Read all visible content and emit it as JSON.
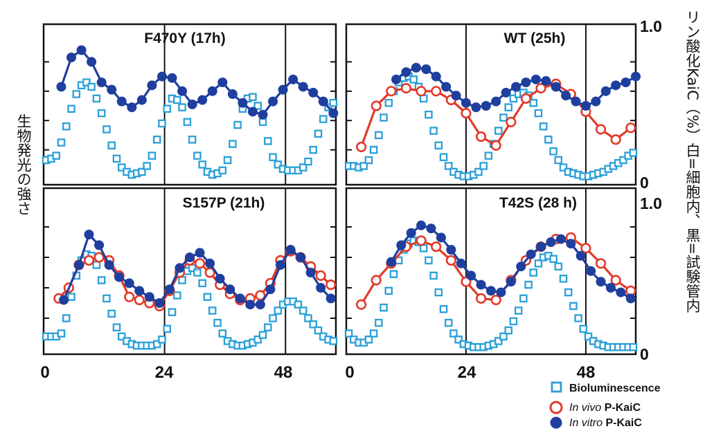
{
  "chart_data": {
    "type": "line",
    "left_axis_label": "生物発光の強さ",
    "right_axis_label": "リン酸化KaiC（%）白=細胞内、黒=試験管内",
    "x_ticks": [
      "0",
      "24",
      "48"
    ],
    "right_ticks": [
      "1.0",
      "0"
    ],
    "legend": {
      "placement": "bottom-right",
      "items": [
        {
          "key": "bio",
          "plain": "Bioluminescence",
          "italic": "",
          "suffix": ""
        },
        {
          "key": "invivo",
          "plain": "",
          "italic": "In vivo",
          "suffix": " P-KaiC"
        },
        {
          "key": "invitro",
          "plain": "",
          "italic": "In vitro",
          "suffix": " P-KaiC"
        }
      ]
    },
    "colors": {
      "bio": "#2a9fd8",
      "invivo": "#e23a2a",
      "invitro": "#1f3f9e"
    },
    "xlim": [
      0,
      58
    ],
    "ylim": [
      0,
      1.0
    ],
    "panels": [
      {
        "title": "F470Y (17h)",
        "period_lines": [
          24,
          48
        ],
        "series": {
          "bio": {
            "x": [
              0.5,
              1.5,
              2.5,
              3.5,
              4.5,
              5.5,
              6.5,
              7.5,
              8.5,
              9.5,
              10.5,
              11.5,
              12.5,
              13.5,
              14.5,
              15.5,
              16.5,
              17.5,
              18.5,
              19.5,
              20.5,
              21.5,
              22.5,
              23.5,
              24.5,
              25.5,
              26.5,
              27.5,
              28.5,
              29.5,
              30.5,
              31.5,
              32.5,
              33.5,
              34.5,
              35.5,
              36.5,
              37.5,
              38.5,
              39.5,
              40.5,
              41.5,
              42.5,
              43.5,
              44.5,
              45.5,
              46.5,
              47.5,
              48.5,
              49.5,
              50.5,
              51.5,
              52.5,
              53.5,
              54.5,
              55.5,
              56.5,
              57.5
            ],
            "y": [
              0.13,
              0.14,
              0.16,
              0.25,
              0.36,
              0.48,
              0.58,
              0.64,
              0.66,
              0.63,
              0.55,
              0.45,
              0.34,
              0.23,
              0.14,
              0.08,
              0.05,
              0.03,
              0.04,
              0.05,
              0.09,
              0.16,
              0.27,
              0.38,
              0.48,
              0.55,
              0.54,
              0.49,
              0.39,
              0.27,
              0.16,
              0.1,
              0.05,
              0.03,
              0.04,
              0.06,
              0.13,
              0.24,
              0.37,
              0.48,
              0.55,
              0.56,
              0.5,
              0.39,
              0.26,
              0.15,
              0.1,
              0.07,
              0.06,
              0.06,
              0.06,
              0.08,
              0.12,
              0.2,
              0.31,
              0.41,
              0.49,
              0.52
            ]
          },
          "invitro": {
            "x": [
              3.5,
              5.5,
              7.5,
              9.5,
              11.5,
              13.5,
              15.5,
              17.5,
              19.5,
              21.5,
              23.5,
              25.5,
              27.5,
              29.5,
              31.5,
              33.5,
              35.5,
              37.5,
              39.5,
              41.5,
              43.5,
              45.5,
              47.5,
              49.5,
              51.5,
              53.5,
              55.5,
              57.5
            ],
            "y": [
              0.63,
              0.83,
              0.88,
              0.8,
              0.66,
              0.61,
              0.53,
              0.49,
              0.54,
              0.64,
              0.7,
              0.69,
              0.6,
              0.51,
              0.54,
              0.6,
              0.66,
              0.58,
              0.52,
              0.46,
              0.44,
              0.53,
              0.61,
              0.68,
              0.63,
              0.59,
              0.53,
              0.45
            ]
          },
          "invivo": {
            "x": [],
            "y": []
          }
        }
      },
      {
        "title": "WT (25h)",
        "period_lines": [
          24,
          48
        ],
        "series": {
          "bio": {
            "x": [
              0.5,
              1.5,
              2.5,
              3.5,
              4.5,
              5.5,
              6.5,
              7.5,
              8.5,
              9.5,
              10.5,
              11.5,
              12.5,
              13.5,
              14.5,
              15.5,
              16.5,
              17.5,
              18.5,
              19.5,
              20.5,
              21.5,
              22.5,
              23.5,
              24.5,
              25.5,
              26.5,
              27.5,
              28.5,
              29.5,
              30.5,
              31.5,
              32.5,
              33.5,
              34.5,
              35.5,
              36.5,
              37.5,
              38.5,
              39.5,
              40.5,
              41.5,
              42.5,
              43.5,
              44.5,
              45.5,
              46.5,
              47.5,
              48.5,
              49.5,
              50.5,
              51.5,
              52.5,
              53.5,
              54.5,
              55.5,
              56.5,
              57.5
            ],
            "y": [
              0.09,
              0.09,
              0.08,
              0.09,
              0.13,
              0.2,
              0.3,
              0.42,
              0.52,
              0.6,
              0.66,
              0.69,
              0.7,
              0.68,
              0.63,
              0.55,
              0.44,
              0.33,
              0.23,
              0.15,
              0.09,
              0.05,
              0.03,
              0.02,
              0.02,
              0.03,
              0.05,
              0.09,
              0.16,
              0.24,
              0.33,
              0.42,
              0.49,
              0.55,
              0.58,
              0.59,
              0.57,
              0.52,
              0.45,
              0.36,
              0.27,
              0.19,
              0.13,
              0.08,
              0.05,
              0.04,
              0.03,
              0.02,
              0.02,
              0.03,
              0.04,
              0.05,
              0.07,
              0.09,
              0.11,
              0.13,
              0.16,
              0.18
            ]
          },
          "invivo": {
            "x": [
              3,
              6,
              9,
              12,
              15,
              18,
              21,
              24,
              27,
              30,
              33,
              36,
              39,
              42,
              45,
              48,
              51,
              54,
              57
            ],
            "y": [
              0.22,
              0.5,
              0.6,
              0.62,
              0.6,
              0.6,
              0.54,
              0.45,
              0.29,
              0.23,
              0.39,
              0.55,
              0.62,
              0.65,
              0.58,
              0.46,
              0.34,
              0.27,
              0.35
            ]
          },
          "invitro": {
            "x": [
              10,
              12,
              14,
              16,
              18,
              20,
              22,
              24,
              26,
              28,
              30,
              32,
              34,
              36,
              38,
              40,
              42,
              44,
              46,
              48,
              50,
              52,
              54,
              56,
              58
            ],
            "y": [
              0.68,
              0.73,
              0.76,
              0.75,
              0.7,
              0.63,
              0.57,
              0.52,
              0.49,
              0.5,
              0.53,
              0.59,
              0.63,
              0.66,
              0.68,
              0.67,
              0.63,
              0.57,
              0.53,
              0.5,
              0.53,
              0.6,
              0.64,
              0.66,
              0.7
            ]
          }
        }
      },
      {
        "title": "S157P (21h)",
        "period_lines": [
          24,
          48
        ],
        "series": {
          "bio": {
            "x": [
              0.5,
              1.5,
              2.5,
              3.5,
              4.5,
              5.5,
              6.5,
              7.5,
              8.5,
              9.5,
              10.5,
              11.5,
              12.5,
              13.5,
              14.5,
              15.5,
              16.5,
              17.5,
              18.5,
              19.5,
              20.5,
              21.5,
              22.5,
              23.5,
              24.5,
              25.5,
              26.5,
              27.5,
              28.5,
              29.5,
              30.5,
              31.5,
              32.5,
              33.5,
              34.5,
              35.5,
              36.5,
              37.5,
              38.5,
              39.5,
              40.5,
              41.5,
              42.5,
              43.5,
              44.5,
              45.5,
              46.5,
              47.5,
              48.5,
              49.5,
              50.5,
              51.5,
              52.5,
              53.5,
              54.5,
              55.5,
              56.5,
              57.5
            ],
            "y": [
              0.08,
              0.08,
              0.08,
              0.1,
              0.2,
              0.34,
              0.48,
              0.58,
              0.62,
              0.61,
              0.55,
              0.45,
              0.33,
              0.23,
              0.14,
              0.08,
              0.05,
              0.03,
              0.02,
              0.02,
              0.02,
              0.02,
              0.03,
              0.06,
              0.13,
              0.24,
              0.35,
              0.45,
              0.51,
              0.53,
              0.5,
              0.43,
              0.34,
              0.25,
              0.17,
              0.1,
              0.05,
              0.03,
              0.02,
              0.02,
              0.03,
              0.04,
              0.06,
              0.09,
              0.14,
              0.2,
              0.25,
              0.29,
              0.31,
              0.31,
              0.29,
              0.25,
              0.2,
              0.16,
              0.12,
              0.08,
              0.06,
              0.05
            ]
          },
          "invivo": {
            "x": [
              3,
              5,
              7,
              9,
              11,
              13,
              15,
              17,
              19,
              21,
              23,
              25,
              27,
              29,
              31,
              33,
              35,
              37,
              39,
              41,
              43,
              45,
              47,
              49,
              51,
              53,
              55,
              57
            ],
            "y": [
              0.33,
              0.4,
              0.55,
              0.58,
              0.6,
              0.58,
              0.48,
              0.34,
              0.32,
              0.3,
              0.28,
              0.38,
              0.5,
              0.58,
              0.56,
              0.5,
              0.42,
              0.36,
              0.32,
              0.33,
              0.35,
              0.43,
              0.58,
              0.64,
              0.6,
              0.54,
              0.48,
              0.42
            ]
          },
          "invitro": {
            "x": [
              4,
              7,
              9,
              11,
              13,
              15,
              17,
              19,
              21,
              23,
              25,
              27,
              29,
              31,
              33,
              35,
              37,
              39,
              41,
              43,
              45,
              47,
              49,
              51,
              53,
              55,
              57
            ],
            "y": [
              0.32,
              0.55,
              0.75,
              0.68,
              0.55,
              0.47,
              0.43,
              0.38,
              0.34,
              0.3,
              0.39,
              0.53,
              0.6,
              0.63,
              0.56,
              0.46,
              0.39,
              0.33,
              0.29,
              0.29,
              0.39,
              0.55,
              0.65,
              0.6,
              0.5,
              0.4,
              0.33
            ]
          }
        }
      },
      {
        "title": "T42S (28 h)",
        "period_lines": [
          24,
          48
        ],
        "series": {
          "bio": {
            "x": [
              0.5,
              1.5,
              2.5,
              3.5,
              4.5,
              5.5,
              6.5,
              7.5,
              8.5,
              9.5,
              10.5,
              11.5,
              12.5,
              13.5,
              14.5,
              15.5,
              16.5,
              17.5,
              18.5,
              19.5,
              20.5,
              21.5,
              22.5,
              23.5,
              24.5,
              25.5,
              26.5,
              27.5,
              28.5,
              29.5,
              30.5,
              31.5,
              32.5,
              33.5,
              34.5,
              35.5,
              36.5,
              37.5,
              38.5,
              39.5,
              40.5,
              41.5,
              42.5,
              43.5,
              44.5,
              45.5,
              46.5,
              47.5,
              48.5,
              49.5,
              50.5,
              51.5,
              52.5,
              53.5,
              54.5,
              55.5,
              56.5,
              57.5
            ],
            "y": [
              0.1,
              0.06,
              0.04,
              0.04,
              0.06,
              0.1,
              0.17,
              0.27,
              0.38,
              0.49,
              0.58,
              0.65,
              0.69,
              0.71,
              0.7,
              0.66,
              0.58,
              0.48,
              0.37,
              0.26,
              0.17,
              0.1,
              0.06,
              0.03,
              0.02,
              0.01,
              0.01,
              0.01,
              0.02,
              0.03,
              0.05,
              0.08,
              0.12,
              0.18,
              0.25,
              0.33,
              0.42,
              0.5,
              0.56,
              0.6,
              0.61,
              0.59,
              0.54,
              0.46,
              0.37,
              0.28,
              0.2,
              0.13,
              0.08,
              0.05,
              0.03,
              0.02,
              0.01,
              0.01,
              0.01,
              0.01,
              0.01,
              0.01
            ]
          },
          "invivo": {
            "x": [
              3,
              6,
              9,
              12,
              15,
              18,
              21,
              24,
              27,
              30,
              33,
              36,
              39,
              42,
              45,
              48,
              51,
              54,
              57
            ],
            "y": [
              0.29,
              0.45,
              0.56,
              0.67,
              0.71,
              0.67,
              0.58,
              0.44,
              0.33,
              0.32,
              0.45,
              0.58,
              0.67,
              0.72,
              0.73,
              0.66,
              0.56,
              0.45,
              0.38
            ]
          },
          "invitro": {
            "x": [
              9,
              11,
              13,
              15,
              17,
              19,
              21,
              23,
              25,
              27,
              29,
              31,
              33,
              35,
              37,
              39,
              41,
              43,
              45,
              47,
              49,
              51,
              53,
              55,
              57
            ],
            "y": [
              0.57,
              0.68,
              0.76,
              0.81,
              0.79,
              0.73,
              0.65,
              0.56,
              0.48,
              0.42,
              0.38,
              0.37,
              0.44,
              0.54,
              0.62,
              0.67,
              0.7,
              0.72,
              0.69,
              0.61,
              0.51,
              0.44,
              0.4,
              0.37,
              0.33
            ]
          }
        }
      }
    ]
  }
}
